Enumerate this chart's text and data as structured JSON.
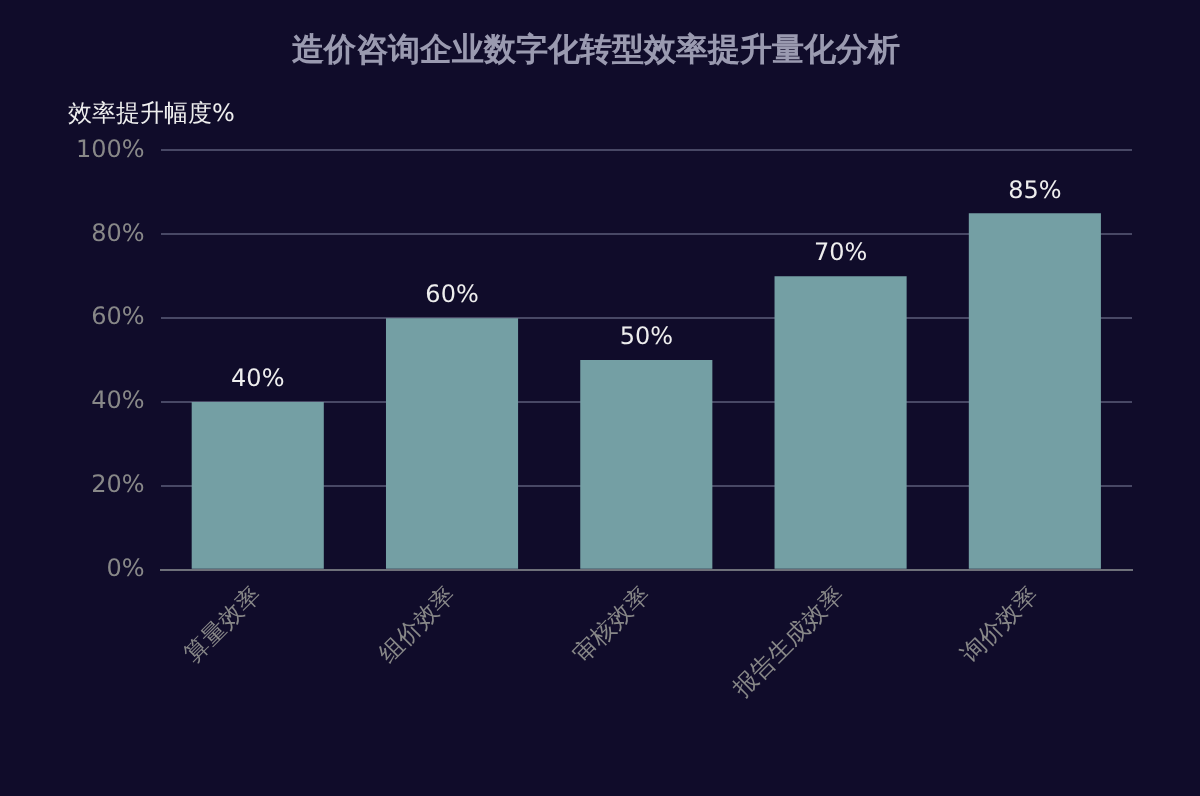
{
  "chart_data": {
    "type": "bar",
    "title": "造价咨询企业数字化转型效率提升量化分析",
    "ylabel": "效率提升幅度%",
    "categories": [
      "算量效率",
      "组价效率",
      "审核效率",
      "报告生成效率",
      "询价效率"
    ],
    "values": [
      40,
      60,
      50,
      70,
      85
    ],
    "value_labels": [
      "40%",
      "60%",
      "50%",
      "70%",
      "85%"
    ],
    "color": "#749fa4",
    "ylim": [
      0,
      100
    ],
    "yticks": [
      {
        "value": 0,
        "label": "0%"
      },
      {
        "value": 20,
        "label": "20%"
      },
      {
        "value": 40,
        "label": "40%"
      },
      {
        "value": 60,
        "label": "60%"
      },
      {
        "value": 80,
        "label": "80%"
      },
      {
        "value": 100,
        "label": "100%"
      }
    ],
    "grid": "y",
    "legend": false
  }
}
